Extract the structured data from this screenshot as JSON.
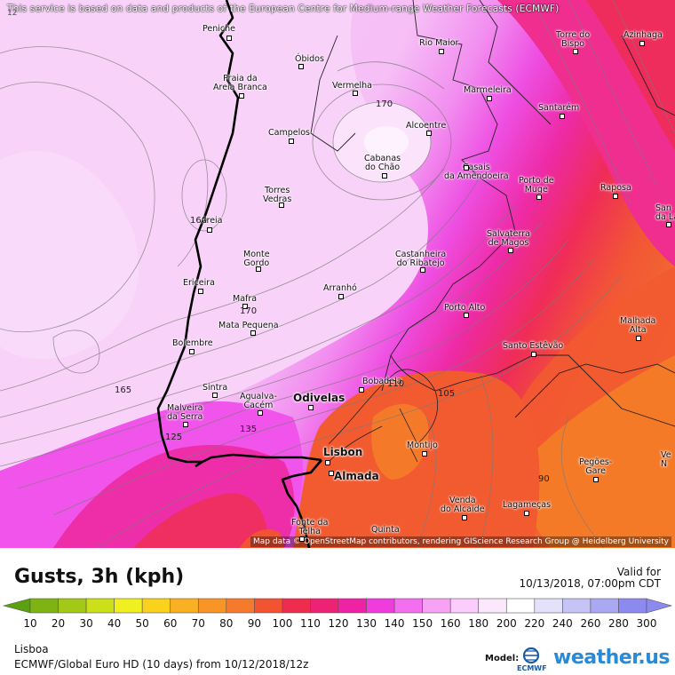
{
  "map": {
    "attribution_top": "This service is based on data and products of the European Centre for Medium-range Weather Forecasts (ECMWF)",
    "attribution_bottom": "Map data © OpenStreetMap contributors, rendering GIScience Research Group @ Heidelberg University",
    "corner_label": "12",
    "cities": [
      {
        "name": "Peniche",
        "major": false
      },
      {
        "name": "Óbidos",
        "major": false
      },
      {
        "name": "Praia da\nAreia Branca",
        "major": false
      },
      {
        "name": "Rio Maior",
        "major": false
      },
      {
        "name": "Torre do\nBispo",
        "major": false
      },
      {
        "name": "Azinhaga",
        "major": false
      },
      {
        "name": "Vermelha",
        "major": false
      },
      {
        "name": "Marmeleira",
        "major": false
      },
      {
        "name": "Santarém",
        "major": false
      },
      {
        "name": "Campelos",
        "major": false
      },
      {
        "name": "Alcoentre",
        "major": false
      },
      {
        "name": "Cabanas\ndo Chão",
        "major": false
      },
      {
        "name": "Casais\nda Amendoeira",
        "major": false
      },
      {
        "name": "Porto de\nMuge",
        "major": false
      },
      {
        "name": "Raposa",
        "major": false
      },
      {
        "name": "San\nda Lan",
        "major": false
      },
      {
        "name": "Torres\nVedras",
        "major": false
      },
      {
        "name": "Areia",
        "major": false
      },
      {
        "name": "Salvaterra\nde Magos",
        "major": false
      },
      {
        "name": "Monte\nGordo",
        "major": false
      },
      {
        "name": "Castanheira\ndo Ribatejo",
        "major": false
      },
      {
        "name": "Ericeira",
        "major": false
      },
      {
        "name": "Arranhó",
        "major": false
      },
      {
        "name": "Mafra",
        "major": false
      },
      {
        "name": "Porto Alto",
        "major": false
      },
      {
        "name": "Malhada\nAlta",
        "major": false
      },
      {
        "name": "Mata Pequena",
        "major": false
      },
      {
        "name": "Bolembre",
        "major": false
      },
      {
        "name": "Santo Estêvão",
        "major": false
      },
      {
        "name": "Sintra",
        "major": false
      },
      {
        "name": "Bobadela",
        "major": false
      },
      {
        "name": "Agualva-\nCacém",
        "major": false
      },
      {
        "name": "Odivelas",
        "major": true
      },
      {
        "name": "Malveira\nda Serra",
        "major": false
      },
      {
        "name": "Montijo",
        "major": false
      },
      {
        "name": "Lisbon",
        "major": true
      },
      {
        "name": "Almada",
        "major": true
      },
      {
        "name": "Pegões-\nGare",
        "major": false
      },
      {
        "name": "Ve\nN",
        "major": false
      },
      {
        "name": "Venda\ndo Alcaide",
        "major": false
      },
      {
        "name": "Lagameças",
        "major": false
      },
      {
        "name": "Fonte da\nTelha",
        "major": false
      },
      {
        "name": "Quinta",
        "major": false
      }
    ],
    "contour_labels": [
      "170",
      "160",
      "170",
      "165",
      "135",
      "125",
      "110",
      "105",
      "90"
    ]
  },
  "legend": {
    "title": "Gusts, 3h (kph)",
    "valid_for": "Valid for",
    "valid_time": "10/13/2018, 07:00pm CDT",
    "colorbar": [
      {
        "value": "10",
        "color": "#5aa010"
      },
      {
        "value": "20",
        "color": "#7eb314"
      },
      {
        "value": "30",
        "color": "#a3c818"
      },
      {
        "value": "40",
        "color": "#cce01a"
      },
      {
        "value": "50",
        "color": "#f0f020"
      },
      {
        "value": "60",
        "color": "#fad21c"
      },
      {
        "value": "70",
        "color": "#f9b022"
      },
      {
        "value": "80",
        "color": "#f99426"
      },
      {
        "value": "90",
        "color": "#f67a2c"
      },
      {
        "value": "100",
        "color": "#f25432"
      },
      {
        "value": "110",
        "color": "#ee2c4e"
      },
      {
        "value": "120",
        "color": "#ed2274"
      },
      {
        "value": "130",
        "color": "#ee23a4"
      },
      {
        "value": "140",
        "color": "#f03cdc"
      },
      {
        "value": "150",
        "color": "#f46ef0"
      },
      {
        "value": "160",
        "color": "#f8a2f6"
      },
      {
        "value": "180",
        "color": "#fcccfc"
      },
      {
        "value": "200",
        "color": "#fce8fc"
      },
      {
        "value": "220",
        "color": "#ffffff"
      },
      {
        "value": "240",
        "color": "#e4e2fa"
      },
      {
        "value": "260",
        "color": "#c6c4f6"
      },
      {
        "value": "280",
        "color": "#aaa8f2"
      },
      {
        "value": "300",
        "color": "#8c8aee"
      }
    ]
  },
  "footer": {
    "region": "Lisboa",
    "model": "ECMWF/Global Euro HD (10 days) from 10/12/2018/12z",
    "model_label": "Model:",
    "ecmwf_logo_text": "ECMWF",
    "brand": "weather.us"
  }
}
